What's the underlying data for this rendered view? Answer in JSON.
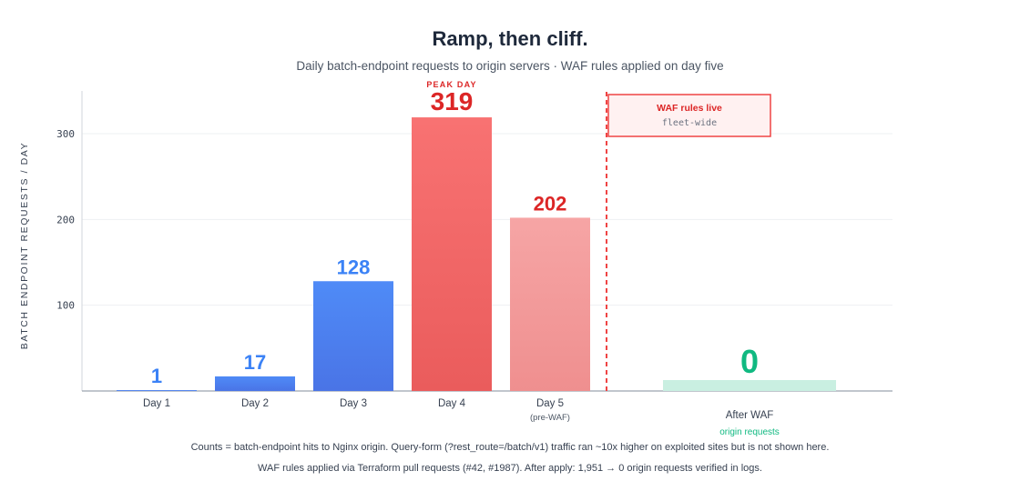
{
  "colors": {
    "blue_top": "#4f8bf7",
    "blue_bottom": "#4a74e6",
    "red_top": "#f87272",
    "red_bottom": "#ea5c5c",
    "pink_top": "#f6a5a5",
    "pink_bottom": "#ef8f8f",
    "green_fill": "#c9efe1",
    "blue_label": "#3b82f6",
    "red_label": "#dc2626",
    "green_label": "#10b981",
    "waf_line": "#ef4444",
    "grid": "#eef0f3",
    "axis": "#9ca3af"
  },
  "chart_data": {
    "type": "bar",
    "title": "Ramp, then cliff.",
    "subtitle": "Daily batch-endpoint requests to origin servers · WAF rules applied on day five",
    "ylabel": "BATCH ENDPOINT REQUESTS / DAY",
    "xlabel": "",
    "ylim": [
      0,
      350
    ],
    "yticks": [
      100,
      200,
      300
    ],
    "grid": true,
    "categories": [
      "Day 1",
      "Day 2",
      "Day 3",
      "Day 4",
      "Day 5",
      "After WAF"
    ],
    "category_sublabels": [
      "",
      "",
      "",
      "",
      "(pre-WAF)",
      "origin requests"
    ],
    "values": [
      1,
      17,
      128,
      319,
      202,
      0
    ],
    "value_labels": [
      "1",
      "17",
      "128",
      "319",
      "202",
      "0"
    ],
    "bar_styles": [
      "blue",
      "blue",
      "blue",
      "red",
      "pink",
      "green"
    ],
    "annotations": [
      {
        "text": "PEAK DAY",
        "category": "Day 4"
      },
      {
        "text": "WAF rules live",
        "subtext": "fleet-wide",
        "position": "between Day 5 and After WAF"
      }
    ]
  },
  "footnotes": [
    "Counts = batch-endpoint hits to Nginx origin. Query-form (?rest_route=/batch/v1) traffic ran ~10x higher on exploited sites but is not shown here.",
    "WAF rules applied via Terraform pull requests (#42, #1987). After apply: 1,951 → 0 origin requests verified in logs."
  ]
}
